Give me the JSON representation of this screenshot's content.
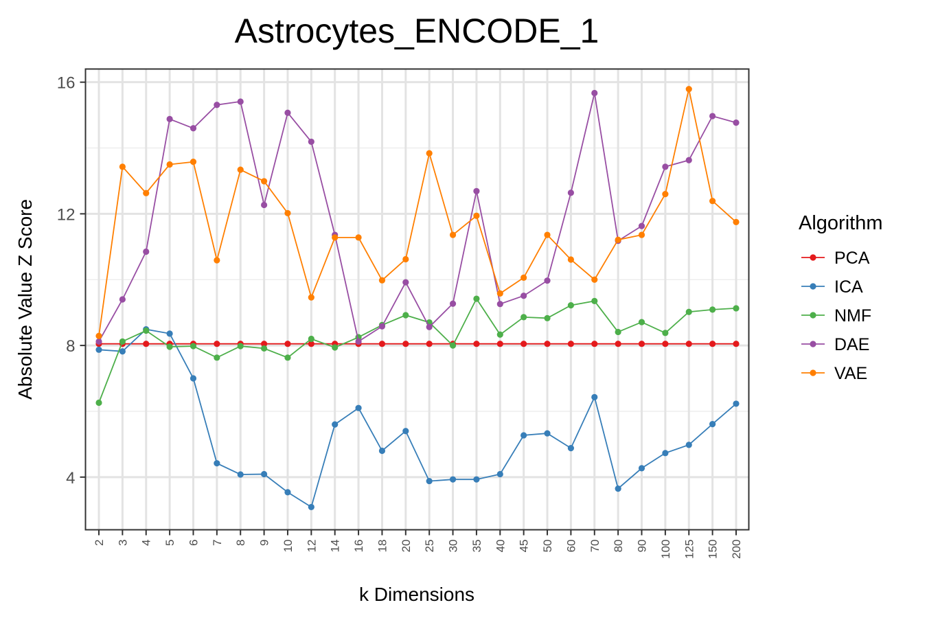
{
  "chart_data": {
    "type": "line",
    "title": "Astrocytes_ENCODE_1",
    "xlabel": "k Dimensions",
    "ylabel": "Absolute Value Z Score",
    "categories": [
      "2",
      "3",
      "4",
      "5",
      "6",
      "7",
      "8",
      "9",
      "10",
      "12",
      "14",
      "16",
      "18",
      "20",
      "25",
      "30",
      "35",
      "40",
      "45",
      "50",
      "60",
      "70",
      "80",
      "90",
      "100",
      "125",
      "150",
      "200"
    ],
    "ylim": [
      2.4,
      16.4
    ],
    "yticks": [
      4,
      8,
      12,
      16
    ],
    "grid": true,
    "legend": {
      "title": "Algorithm",
      "position": "right"
    },
    "series": [
      {
        "name": "PCA",
        "color": "#E41A1C",
        "values": [
          8.05,
          8.05,
          8.05,
          8.05,
          8.05,
          8.05,
          8.05,
          8.05,
          8.05,
          8.05,
          8.05,
          8.05,
          8.05,
          8.05,
          8.05,
          8.05,
          8.05,
          8.05,
          8.05,
          8.05,
          8.05,
          8.05,
          8.05,
          8.05,
          8.05,
          8.05,
          8.05,
          8.05
        ]
      },
      {
        "name": "ICA",
        "color": "#377EB8",
        "values": [
          7.87,
          7.82,
          8.49,
          8.36,
          7.0,
          4.42,
          4.08,
          4.09,
          3.54,
          3.09,
          5.6,
          6.1,
          4.8,
          5.4,
          3.88,
          3.93,
          3.93,
          4.09,
          5.27,
          5.33,
          4.88,
          6.43,
          3.65,
          4.27,
          4.73,
          4.98,
          5.61,
          6.23
        ]
      },
      {
        "name": "NMF",
        "color": "#4DAF4A",
        "values": [
          6.26,
          8.12,
          8.45,
          7.96,
          7.98,
          7.63,
          7.98,
          7.91,
          7.63,
          8.2,
          7.94,
          8.25,
          8.62,
          8.92,
          8.7,
          8.0,
          9.42,
          8.33,
          8.86,
          8.83,
          9.22,
          9.35,
          8.41,
          8.71,
          8.38,
          9.02,
          9.09,
          9.13
        ]
      },
      {
        "name": "DAE",
        "color": "#984EA3",
        "values": [
          8.12,
          9.4,
          10.85,
          14.88,
          14.6,
          15.31,
          15.41,
          12.27,
          15.07,
          14.19,
          11.36,
          8.12,
          8.58,
          9.92,
          8.56,
          9.27,
          12.69,
          9.26,
          9.51,
          9.97,
          12.64,
          15.67,
          11.18,
          11.63,
          13.43,
          13.63,
          14.97,
          14.77
        ]
      },
      {
        "name": "VAE",
        "color": "#FF7F00",
        "values": [
          8.29,
          13.43,
          12.63,
          13.5,
          13.58,
          10.59,
          13.34,
          12.99,
          12.02,
          9.46,
          11.28,
          11.28,
          9.98,
          10.62,
          13.84,
          11.36,
          11.94,
          9.58,
          10.06,
          11.36,
          10.61,
          10.0,
          11.21,
          11.36,
          12.6,
          15.79,
          12.39,
          11.75
        ]
      }
    ]
  }
}
